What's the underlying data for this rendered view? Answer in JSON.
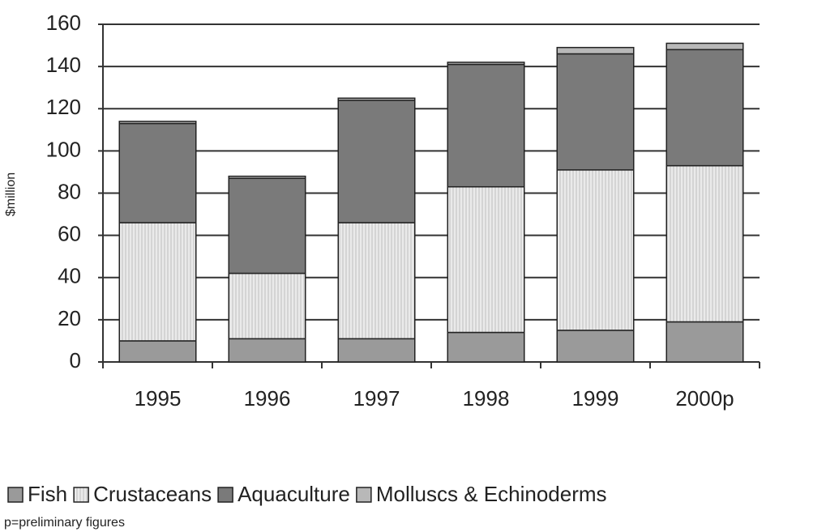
{
  "chart_data": {
    "type": "stacked_bar",
    "y_label": "$million",
    "categories": [
      "1995",
      "1996",
      "1997",
      "1998",
      "1999",
      "2000p"
    ],
    "series": [
      {
        "name": "Fish",
        "color": "#9a9a9a",
        "values": [
          10,
          11,
          11,
          14,
          15,
          19
        ]
      },
      {
        "name": "Crustaceans",
        "color": "#d4d4d4",
        "values": [
          56,
          31,
          55,
          69,
          76,
          74
        ]
      },
      {
        "name": "Aquaculture",
        "color": "#7a7a7a",
        "values": [
          47,
          45,
          58,
          58,
          55,
          55
        ]
      },
      {
        "name": "Molluscs & Echinoderms",
        "color": "#b8b8b8",
        "values": [
          1,
          1,
          1,
          1,
          3,
          3
        ]
      }
    ],
    "ylim": [
      0,
      160
    ],
    "yticks": [
      0,
      20,
      40,
      60,
      80,
      100,
      120,
      140,
      160
    ],
    "grid": true,
    "footnote": "p=preliminary figures"
  }
}
